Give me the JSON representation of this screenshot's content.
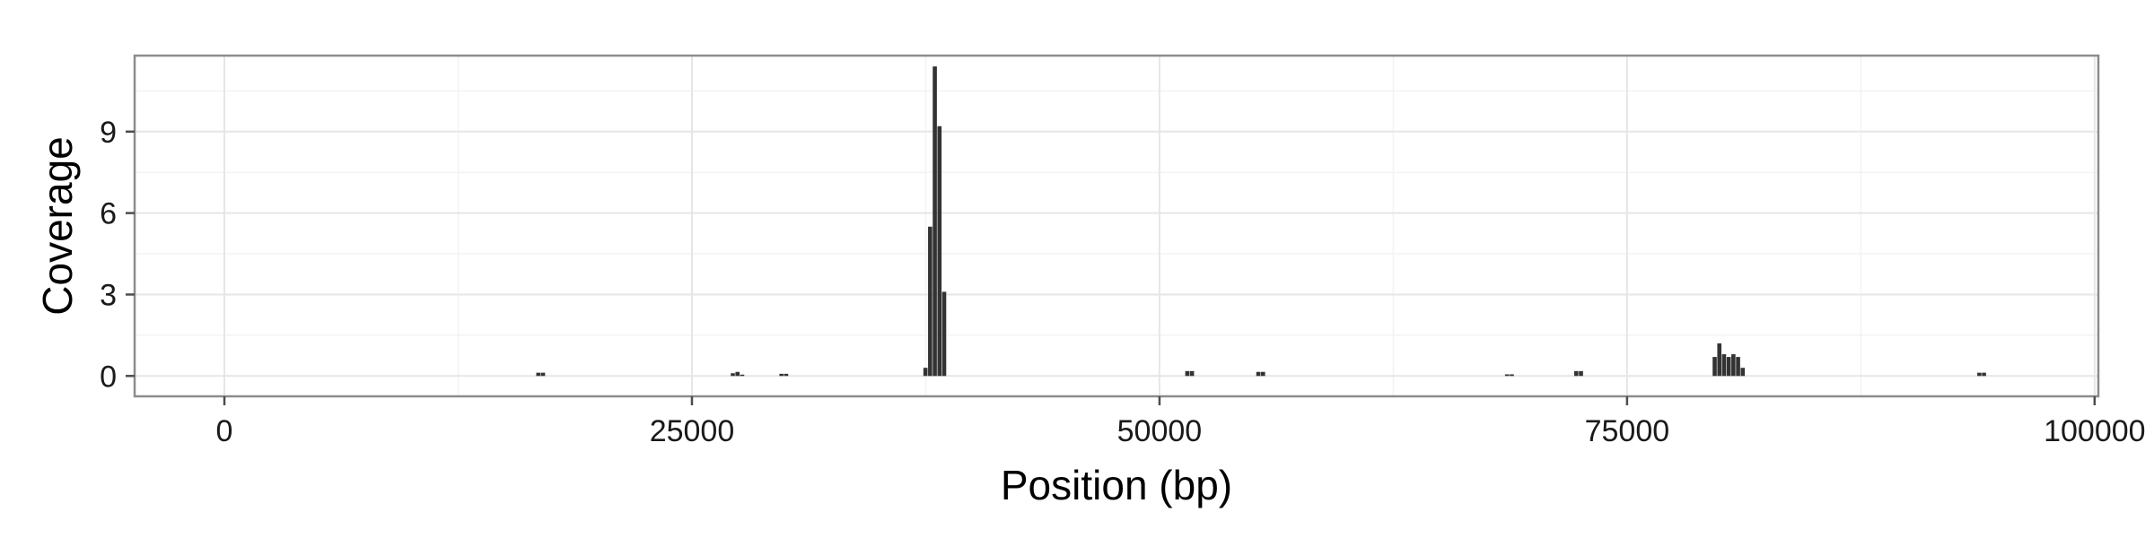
{
  "chart_data": {
    "type": "bar",
    "title": "",
    "xlabel": "Position (bp)",
    "ylabel": "Coverage",
    "xlim": [
      -4800,
      100200
    ],
    "ylim": [
      -0.75,
      11.8
    ],
    "x_ticks": [
      0,
      25000,
      50000,
      75000,
      100000
    ],
    "x_tick_labels": [
      "0",
      "25000",
      "50000",
      "75000",
      "100000"
    ],
    "y_ticks": [
      0,
      3,
      6,
      9
    ],
    "y_tick_labels": [
      "0",
      "3",
      "6",
      "9"
    ],
    "grid": true,
    "bin_width": 250,
    "x": [
      16800,
      17050,
      27200,
      27450,
      27700,
      29800,
      30050,
      37500,
      37750,
      38000,
      38250,
      38500,
      51500,
      51750,
      55300,
      55550,
      68600,
      68850,
      72300,
      72550,
      79700,
      79950,
      80200,
      80450,
      80700,
      80950,
      81200,
      93850,
      94100
    ],
    "values": [
      0.12,
      0.12,
      0.1,
      0.15,
      0.05,
      0.08,
      0.08,
      0.3,
      5.5,
      11.4,
      9.2,
      3.1,
      0.18,
      0.18,
      0.15,
      0.15,
      0.06,
      0.06,
      0.18,
      0.18,
      0.7,
      1.2,
      0.8,
      0.7,
      0.8,
      0.7,
      0.3,
      0.12,
      0.12
    ],
    "colors": {
      "bar": "#333333",
      "panel_border": "#8c8c8c",
      "grid_major": "#e6e6e6",
      "grid_minor": "#f3f3f3",
      "tick": "#4d4d4d"
    }
  }
}
